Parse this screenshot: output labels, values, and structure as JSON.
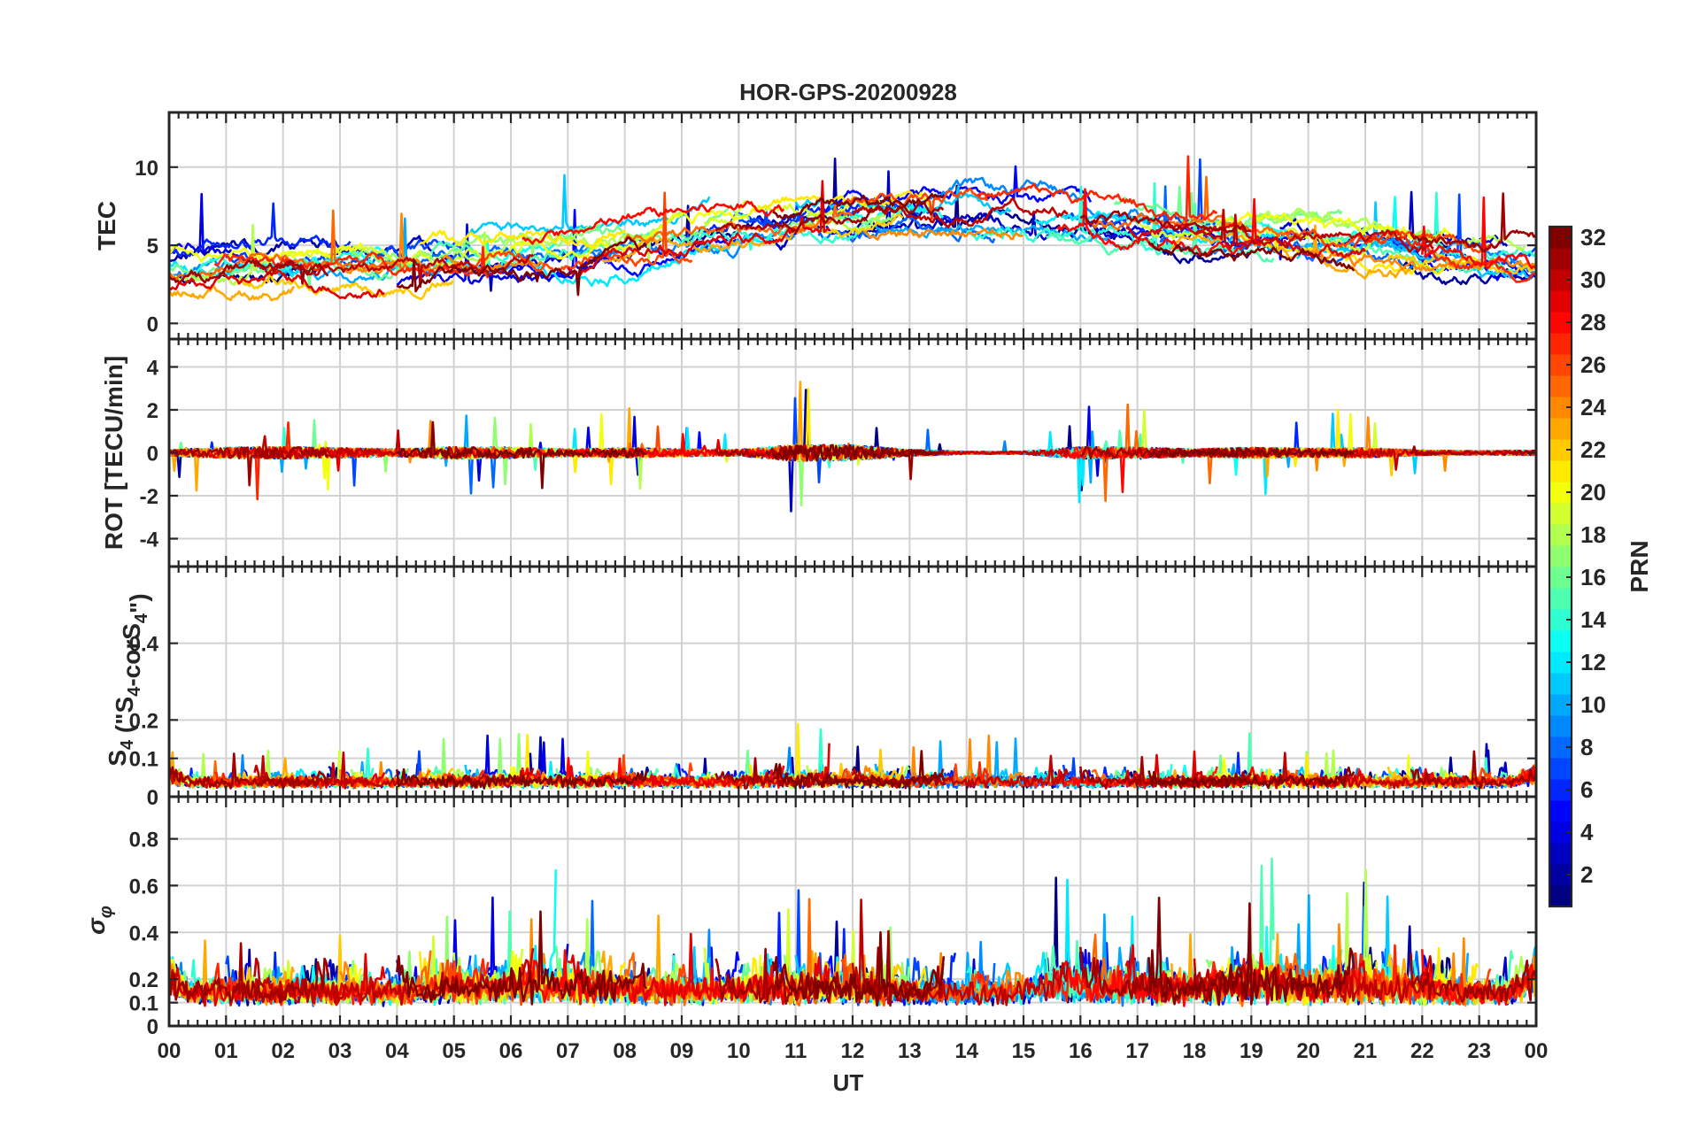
{
  "chart_data": {
    "type": "line",
    "title": "HOR-GPS-20200928",
    "xlabel": "UT",
    "x_ticks": [
      "00",
      "01",
      "02",
      "03",
      "04",
      "05",
      "06",
      "07",
      "08",
      "09",
      "10",
      "11",
      "12",
      "13",
      "14",
      "15",
      "16",
      "17",
      "18",
      "19",
      "20",
      "21",
      "22",
      "23",
      "00"
    ],
    "xlim": [
      0,
      24
    ],
    "panels": [
      {
        "id": "tec",
        "ylabel": "TEC",
        "ylim": [
          -1,
          13.5
        ],
        "yticks": [
          0,
          5,
          10
        ],
        "ytick_labels": [
          "0",
          "5",
          "10"
        ],
        "base": [
          3.5,
          3.6,
          3.7,
          3.8,
          3.8,
          4.0,
          4.2,
          4.5,
          5.0,
          5.5,
          6.0,
          6.4,
          6.6,
          6.8,
          6.9,
          6.8,
          6.5,
          6.0,
          5.6,
          5.4,
          5.3,
          5.0,
          4.6,
          4.3,
          4.0
        ],
        "spread": 1.3,
        "spike_prob": 0.004,
        "spike_amp": 3,
        "baseline_mode": "follow"
      },
      {
        "id": "rot",
        "ylabel": "ROT [TECU/min]",
        "ylim": [
          -5.3,
          5.3
        ],
        "yticks": [
          -4,
          -2,
          0,
          2,
          4
        ],
        "ytick_labels": [
          "-4",
          "-2",
          "0",
          "2",
          "4"
        ],
        "activity": [
          0.5,
          0.9,
          1.0,
          0.8,
          0.6,
          1.0,
          0.9,
          0.6,
          0.8,
          0.6,
          0.5,
          1.4,
          1.3,
          0.5,
          0.2,
          0.2,
          1.0,
          0.9,
          0.6,
          0.9,
          0.7,
          0.8,
          0.4,
          0.3,
          0.4
        ],
        "spike_prob": 0.015,
        "spike_amp": 2.6
      },
      {
        "id": "s4",
        "ylabel": "S4 (\"S4-corS4\")",
        "ylim": [
          0,
          0.6
        ],
        "yticks": [
          0,
          0.1,
          0.2,
          0.4
        ],
        "ytick_labels": [
          "0",
          "0.1",
          "0.2",
          "0.4"
        ],
        "base_level": 0.03,
        "activity": [
          0.6,
          0.5,
          0.6,
          0.5,
          0.5,
          0.8,
          0.8,
          0.7,
          0.9,
          0.6,
          0.6,
          0.9,
          0.8,
          0.6,
          0.8,
          0.7,
          0.5,
          0.6,
          0.6,
          0.7,
          0.7,
          0.6,
          0.5,
          0.6,
          0.7
        ],
        "spike_prob": 0.01,
        "spike_amp": 0.07
      },
      {
        "id": "sigma",
        "ylabel": "σφ",
        "ylim": [
          0,
          0.98
        ],
        "yticks": [
          0,
          0.1,
          0.2,
          0.4,
          0.6,
          0.8
        ],
        "ytick_labels": [
          "0",
          "0.1",
          "0.2",
          "0.4",
          "0.6",
          "0.8"
        ],
        "base_level": 0.12,
        "activity": [
          0.4,
          0.5,
          0.5,
          0.5,
          0.4,
          0.8,
          1.0,
          0.9,
          0.8,
          0.5,
          0.6,
          0.8,
          0.7,
          0.4,
          0.4,
          0.5,
          1.2,
          0.8,
          0.7,
          1.2,
          0.8,
          1.0,
          0.6,
          0.4,
          0.5
        ],
        "spike_prob": 0.01,
        "spike_amp": 0.22
      }
    ],
    "colorbar": {
      "label": "PRN",
      "range": [
        1,
        32
      ],
      "ticks": [
        2,
        4,
        6,
        8,
        10,
        12,
        14,
        16,
        18,
        20,
        22,
        24,
        26,
        28,
        30,
        32
      ],
      "tick_labels": [
        "2",
        "4",
        "6",
        "8",
        "10",
        "12",
        "14",
        "16",
        "18",
        "20",
        "22",
        "24",
        "26",
        "28",
        "30",
        "32"
      ],
      "colormap": "jet"
    },
    "series": [
      {
        "prn": 1,
        "passes": [
          [
            0.0,
            2.6
          ],
          [
            12.0,
            17.0
          ],
          [
            21.0,
            22.5
          ]
        ]
      },
      {
        "prn": 2,
        "passes": [
          [
            0.0,
            3.0
          ],
          [
            8.3,
            12.8
          ],
          [
            15.5,
            19.0
          ],
          [
            21.6,
            24.0
          ]
        ]
      },
      {
        "prn": 3,
        "passes": [
          [
            2.8,
            7.0
          ],
          [
            10.5,
            15.5
          ],
          [
            19.5,
            23.5
          ]
        ]
      },
      {
        "prn": 4,
        "passes": [
          [
            0.0,
            1.4
          ],
          [
            4.0,
            9.0
          ],
          [
            16.0,
            20.0
          ],
          [
            22.0,
            24.0
          ]
        ]
      },
      {
        "prn": 5,
        "passes": [
          [
            5.5,
            10.0
          ],
          [
            11.5,
            16.2
          ],
          [
            20.5,
            24.0
          ]
        ]
      },
      {
        "prn": 6,
        "passes": [
          [
            0.0,
            3.2
          ],
          [
            9.0,
            13.8
          ],
          [
            16.4,
            20.4
          ]
        ]
      },
      {
        "prn": 7,
        "passes": [
          [
            1.0,
            5.3
          ],
          [
            10.0,
            13.2
          ],
          [
            15.7,
            18.8
          ],
          [
            21.3,
            24.0
          ]
        ]
      },
      {
        "prn": 8,
        "passes": [
          [
            3.8,
            8.2
          ],
          [
            11.4,
            14.5
          ],
          [
            17.4,
            22.0
          ]
        ]
      },
      {
        "prn": 9,
        "passes": [
          [
            0.0,
            2.0
          ],
          [
            7.2,
            11.0
          ],
          [
            13.2,
            17.2
          ],
          [
            20.8,
            24.0
          ]
        ]
      },
      {
        "prn": 10,
        "passes": [
          [
            1.8,
            6.0
          ],
          [
            12.4,
            16.8
          ],
          [
            18.6,
            22.8
          ]
        ]
      },
      {
        "prn": 11,
        "passes": [
          [
            5.2,
            9.5
          ],
          [
            11.0,
            14.8
          ],
          [
            19.8,
            24.0
          ]
        ]
      },
      {
        "prn": 12,
        "passes": [
          [
            0.0,
            2.4
          ],
          [
            6.4,
            10.6
          ],
          [
            15.2,
            19.6
          ]
        ]
      },
      {
        "prn": 13,
        "passes": [
          [
            2.5,
            6.8
          ],
          [
            11.7,
            13.6
          ],
          [
            17.8,
            21.6
          ]
        ]
      },
      {
        "prn": 14,
        "passes": [
          [
            0.4,
            3.6
          ],
          [
            8.8,
            12.2
          ],
          [
            14.0,
            17.6
          ],
          [
            21.8,
            24.0
          ]
        ]
      },
      {
        "prn": 15,
        "passes": [
          [
            4.6,
            8.6
          ],
          [
            15.4,
            19.4
          ],
          [
            20.2,
            23.6
          ]
        ]
      },
      {
        "prn": 16,
        "passes": [
          [
            0.0,
            4.2
          ],
          [
            6.8,
            10.2
          ],
          [
            16.6,
            20.6
          ]
        ]
      },
      {
        "prn": 17,
        "passes": [
          [
            3.2,
            7.6
          ],
          [
            10.8,
            13.0
          ],
          [
            18.2,
            22.4
          ]
        ]
      },
      {
        "prn": 18,
        "passes": [
          [
            0.0,
            1.8
          ],
          [
            5.0,
            9.0
          ],
          [
            11.2,
            12.6
          ],
          [
            19.0,
            23.8
          ]
        ]
      },
      {
        "prn": 19,
        "passes": [
          [
            2.0,
            6.2
          ],
          [
            9.4,
            12.4
          ],
          [
            17.0,
            21.2
          ]
        ]
      },
      {
        "prn": 20,
        "passes": [
          [
            0.0,
            3.4
          ],
          [
            6.0,
            10.4
          ],
          [
            18.4,
            22.6
          ]
        ]
      },
      {
        "prn": 21,
        "passes": [
          [
            4.4,
            8.0
          ],
          [
            10.2,
            13.4
          ],
          [
            19.2,
            23.0
          ]
        ]
      },
      {
        "prn": 22,
        "passes": [
          [
            1.2,
            5.0
          ],
          [
            11.5,
            12.9
          ],
          [
            21.4,
            24.0
          ]
        ]
      },
      {
        "prn": 23,
        "passes": [
          [
            0.0,
            2.2
          ],
          [
            7.6,
            11.4
          ],
          [
            17.6,
            21.8
          ]
        ]
      },
      {
        "prn": 24,
        "passes": [
          [
            3.0,
            6.6
          ],
          [
            12.2,
            15.0
          ],
          [
            20.0,
            24.0
          ]
        ]
      },
      {
        "prn": 25,
        "passes": [
          [
            0.0,
            4.6
          ],
          [
            8.0,
            12.0
          ],
          [
            16.2,
            19.8
          ]
        ]
      },
      {
        "prn": 26,
        "passes": [
          [
            4.8,
            9.2
          ],
          [
            11.8,
            14.4
          ],
          [
            19.6,
            23.2
          ]
        ]
      },
      {
        "prn": 27,
        "passes": [
          [
            0.8,
            5.6
          ],
          [
            14.2,
            18.4
          ],
          [
            20.8,
            24.0
          ]
        ]
      },
      {
        "prn": 28,
        "passes": [
          [
            6.2,
            10.8
          ],
          [
            15.6,
            19.2
          ],
          [
            22.0,
            24.0
          ]
        ]
      },
      {
        "prn": 29,
        "passes": [
          [
            0.0,
            3.8
          ],
          [
            7.0,
            11.6
          ],
          [
            16.8,
            21.0
          ]
        ]
      },
      {
        "prn": 30,
        "passes": [
          [
            1.5,
            6.4
          ],
          [
            12.0,
            15.8
          ],
          [
            18.0,
            22.2
          ]
        ]
      },
      {
        "prn": 31,
        "passes": [
          [
            0.0,
            2.8
          ],
          [
            9.6,
            13.6
          ],
          [
            16.0,
            19.0
          ],
          [
            21.8,
            24.0
          ]
        ]
      },
      {
        "prn": 32,
        "passes": [
          [
            4.0,
            8.4
          ],
          [
            10.6,
            13.6
          ],
          [
            17.2,
            20.8
          ]
        ]
      }
    ]
  }
}
